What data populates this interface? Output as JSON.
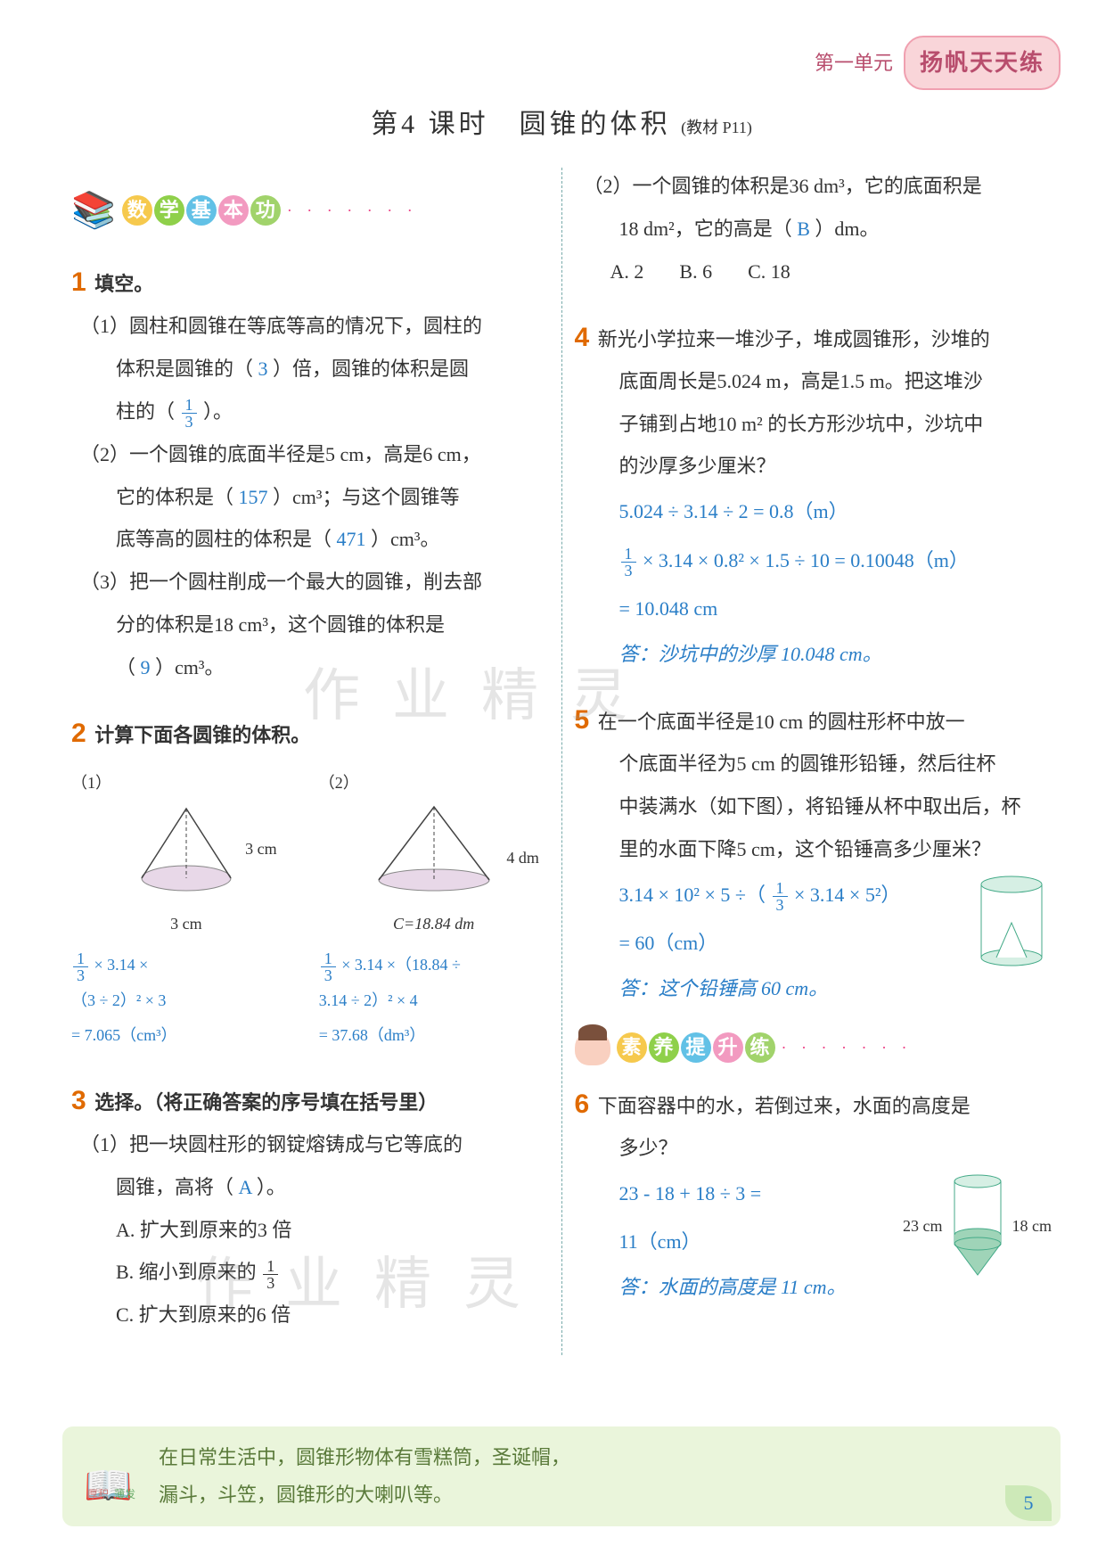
{
  "header": {
    "unit": "第一单元",
    "badge": "扬帆天天练"
  },
  "title": {
    "main": "第4 课时　圆锥的体积",
    "sub": "(教材 P11)"
  },
  "watermarks": {
    "w1": "作 业 精 灵",
    "w2": "作 业 精 灵"
  },
  "section1": {
    "chars": [
      "数",
      "学",
      "基",
      "本",
      "功"
    ],
    "colors": [
      "#f6c94d",
      "#8fd04a",
      "#62c1e6",
      "#f29ac0",
      "#a1d36b"
    ],
    "dots": "· · · · · · ·"
  },
  "section2": {
    "chars": [
      "素",
      "养",
      "提",
      "升",
      "练"
    ],
    "colors": [
      "#f6c94d",
      "#8fd04a",
      "#62c1e6",
      "#f29ac0",
      "#a1d36b"
    ],
    "dots": "· · · · · · ·"
  },
  "q1": {
    "title": "填空。",
    "p1a": "（1）圆柱和圆锥在等底等高的情况下，圆柱的",
    "p1b_pre": "体积是圆锥的（",
    "p1b_ans": "3",
    "p1b_post": "）倍，圆锥的体积是圆",
    "p1c_pre": "柱的（",
    "p1c_post": "）。",
    "p2a": "（2）一个圆锥的底面半径是5 cm，高是6 cm，",
    "p2b_pre": "它的体积是（",
    "p2b_ans": "157",
    "p2b_post": "）cm³；与这个圆锥等",
    "p2c_pre": "底等高的圆柱的体积是（",
    "p2c_ans": "471",
    "p2c_post": "）cm³。",
    "p3a": "（3）把一个圆柱削成一个最大的圆锥，削去部",
    "p3b": "分的体积是18 cm³，这个圆锥的体积是",
    "p3c_pre": "（",
    "p3c_ans": "9",
    "p3c_post": "）cm³。"
  },
  "q2": {
    "title": "计算下面各圆锥的体积。",
    "d1": {
      "label": "（1）",
      "h": "3 cm",
      "w": "3 cm"
    },
    "d2": {
      "label": "（2）",
      "h": "4 dm",
      "c": "C=18.84 dm"
    },
    "w1l1": " × 3.14 ×",
    "w1l2": "（3 ÷ 2）² × 3",
    "w1l3": "= 7.065（cm³）",
    "w2l1": " × 3.14 ×（18.84 ÷",
    "w2l2": "3.14 ÷ 2）² × 4",
    "w2l3": "= 37.68（dm³）"
  },
  "q3": {
    "title": "选择。（将正确答案的序号填在括号里）",
    "p1a": "（1）把一块圆柱形的钢锭熔铸成与它等底的",
    "p1b_pre": "圆锥，高将（",
    "p1b_ans": "A",
    "p1b_post": "）。",
    "oA": "A. 扩大到原来的3 倍",
    "oB_pre": "B. 缩小到原来的",
    "oC": "C. 扩大到原来的6 倍",
    "p2a": "（2）一个圆锥的体积是36 dm³，它的底面积是",
    "p2b_pre": "18 dm²，它的高是（",
    "p2b_ans": "B",
    "p2b_post": "）dm。",
    "optA": "A. 2",
    "optB": "B. 6",
    "optC": "C. 18"
  },
  "q4": {
    "text1": "新光小学拉来一堆沙子，堆成圆锥形，沙堆的",
    "text2": "底面周长是5.024 m，高是1.5 m。把这堆沙",
    "text3": "子铺到占地10 m² 的长方形沙坑中，沙坑中",
    "text4": "的沙厚多少厘米？",
    "w1": "5.024 ÷ 3.14 ÷ 2 = 0.8（m）",
    "w2": " × 3.14 × 0.8² × 1.5 ÷ 10 = 0.10048（m）",
    "w3": "= 10.048 cm",
    "ans": "答：沙坑中的沙厚 10.048 cm。"
  },
  "q5": {
    "text1": "在一个底面半径是10 cm 的圆柱形杯中放一",
    "text2": "个底面半径为5 cm 的圆锥形铅锤，然后往杯",
    "text3": "中装满水（如下图），将铅锤从杯中取出后，杯",
    "text4": "里的水面下降5 cm，这个铅锤高多少厘米？",
    "w1_pre": "3.14 × 10² × 5 ÷（",
    "w1_post": " × 3.14 × 5²）",
    "w2": "= 60（cm）",
    "ans": "答：这个铅锤高 60 cm。"
  },
  "q6": {
    "text1": "下面容器中的水，若倒过来，水面的高度是",
    "text2": "多少？",
    "w1": "23 - 18 + 18 ÷ 3 =",
    "w2": "11（cm）",
    "ans": "答：水面的高度是 11 cm。",
    "dimL": "23 cm",
    "dimR": "18 cm"
  },
  "footer": {
    "line1": "在日常生活中，圆锥形物体有雪糕筒，圣诞帽，",
    "line2": "漏斗，斗笠，圆锥形的大喇叭等。",
    "tag1": "厚积",
    "tag2": "薄发"
  },
  "page": "5"
}
